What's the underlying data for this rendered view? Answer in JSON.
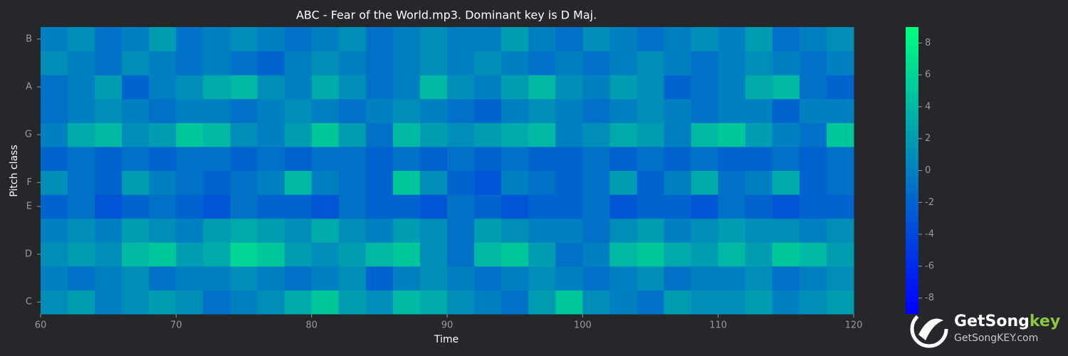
{
  "chart_data": {
    "type": "heatmap",
    "title": "ABC - Fear of the World.mp3. Dominant key is D Maj.",
    "xlabel": "Time",
    "ylabel": "Pitch class",
    "categories": [
      "C",
      null,
      "D",
      null,
      "E",
      "F",
      null,
      "G",
      null,
      "A",
      null,
      "B"
    ],
    "xbins": [
      60,
      62,
      64,
      66,
      68,
      70,
      72,
      74,
      76,
      78,
      80,
      82,
      84,
      86,
      88,
      90,
      92,
      94,
      96,
      98,
      100,
      102,
      104,
      106,
      108,
      110,
      112,
      114,
      116,
      118,
      120
    ],
    "z": [
      [
        1,
        2,
        0,
        1,
        2,
        1,
        -1,
        0,
        1,
        3,
        5,
        2,
        1,
        4,
        3,
        1,
        0,
        -1,
        2,
        5,
        1,
        0,
        -1,
        2,
        1,
        1,
        2,
        0,
        1,
        2
      ],
      [
        0,
        -1,
        0,
        1,
        -1,
        0,
        0,
        1,
        0,
        -1,
        0,
        1,
        -2,
        0,
        1,
        0,
        -1,
        0,
        1,
        0,
        -1,
        0,
        1,
        -1,
        0,
        0,
        1,
        -1,
        0,
        1
      ],
      [
        1,
        2,
        1,
        4,
        5,
        2,
        3,
        6,
        5,
        2,
        1,
        2,
        4,
        5,
        1,
        -1,
        4,
        5,
        2,
        -1,
        0,
        4,
        5,
        3,
        2,
        4,
        2,
        5,
        4,
        2
      ],
      [
        0,
        1,
        0,
        2,
        1,
        0,
        2,
        3,
        2,
        1,
        3,
        1,
        0,
        2,
        1,
        -1,
        2,
        1,
        0,
        0,
        -1,
        1,
        2,
        0,
        1,
        2,
        1,
        1,
        0,
        1
      ],
      [
        -2,
        -1,
        -3,
        -2,
        -1,
        -2,
        -3,
        -1,
        -2,
        -2,
        -3,
        -1,
        -2,
        -2,
        -3,
        -1,
        -2,
        -3,
        -2,
        -2,
        -1,
        -3,
        -2,
        -2,
        -3,
        -1,
        -2,
        -3,
        -2,
        -2
      ],
      [
        1,
        -1,
        -2,
        2,
        0,
        -1,
        -2,
        -1,
        0,
        4,
        0,
        -1,
        -2,
        5,
        1,
        -2,
        -3,
        0,
        -1,
        -2,
        -1,
        2,
        -2,
        0,
        3,
        -1,
        0,
        3,
        -2,
        -1
      ],
      [
        -2,
        -1,
        -2,
        -1,
        -2,
        -1,
        -1,
        -2,
        -1,
        -2,
        -1,
        -1,
        -2,
        -1,
        -2,
        -1,
        -2,
        -1,
        -2,
        -2,
        -1,
        -2,
        -1,
        -2,
        -1,
        -2,
        -2,
        -1,
        -2,
        -1
      ],
      [
        0,
        3,
        4,
        1,
        2,
        5,
        4,
        1,
        0,
        2,
        5,
        2,
        -1,
        4,
        2,
        1,
        2,
        3,
        4,
        0,
        1,
        3,
        2,
        0,
        4,
        5,
        2,
        0,
        -1,
        5
      ],
      [
        -1,
        0,
        1,
        0,
        -1,
        0,
        0,
        -1,
        0,
        1,
        0,
        -1,
        0,
        1,
        0,
        -1,
        -2,
        0,
        1,
        0,
        -1,
        0,
        1,
        0,
        -1,
        0,
        0,
        -2,
        0,
        0
      ],
      [
        -1,
        0,
        2,
        -2,
        0,
        1,
        3,
        4,
        1,
        0,
        3,
        1,
        -1,
        0,
        4,
        1,
        0,
        2,
        4,
        1,
        0,
        2,
        1,
        -2,
        -1,
        0,
        3,
        4,
        -1,
        -2
      ],
      [
        1,
        0,
        -1,
        1,
        0,
        -1,
        0,
        -1,
        -2,
        0,
        1,
        0,
        -1,
        0,
        1,
        0,
        1,
        0,
        -1,
        0,
        -1,
        0,
        1,
        0,
        -1,
        0,
        1,
        0,
        -1,
        0
      ],
      [
        0,
        1,
        -1,
        0,
        2,
        -1,
        0,
        1,
        0,
        -1,
        0,
        1,
        -1,
        0,
        1,
        0,
        0,
        2,
        0,
        -1,
        1,
        0,
        -1,
        0,
        1,
        0,
        2,
        -1,
        0,
        1
      ]
    ],
    "zlim": [
      -9,
      9
    ],
    "zticks": [
      -8,
      -6,
      -4,
      -2,
      0,
      2,
      4,
      6,
      8
    ],
    "xlim": [
      60,
      120
    ],
    "xticks": [
      60,
      70,
      80,
      90,
      100,
      110,
      120
    ],
    "colormap": [
      "#0000ff",
      "#00ff80"
    ]
  },
  "watermark": {
    "brand": [
      "GetSong",
      "key"
    ],
    "url": "GetSongKEY.com"
  }
}
